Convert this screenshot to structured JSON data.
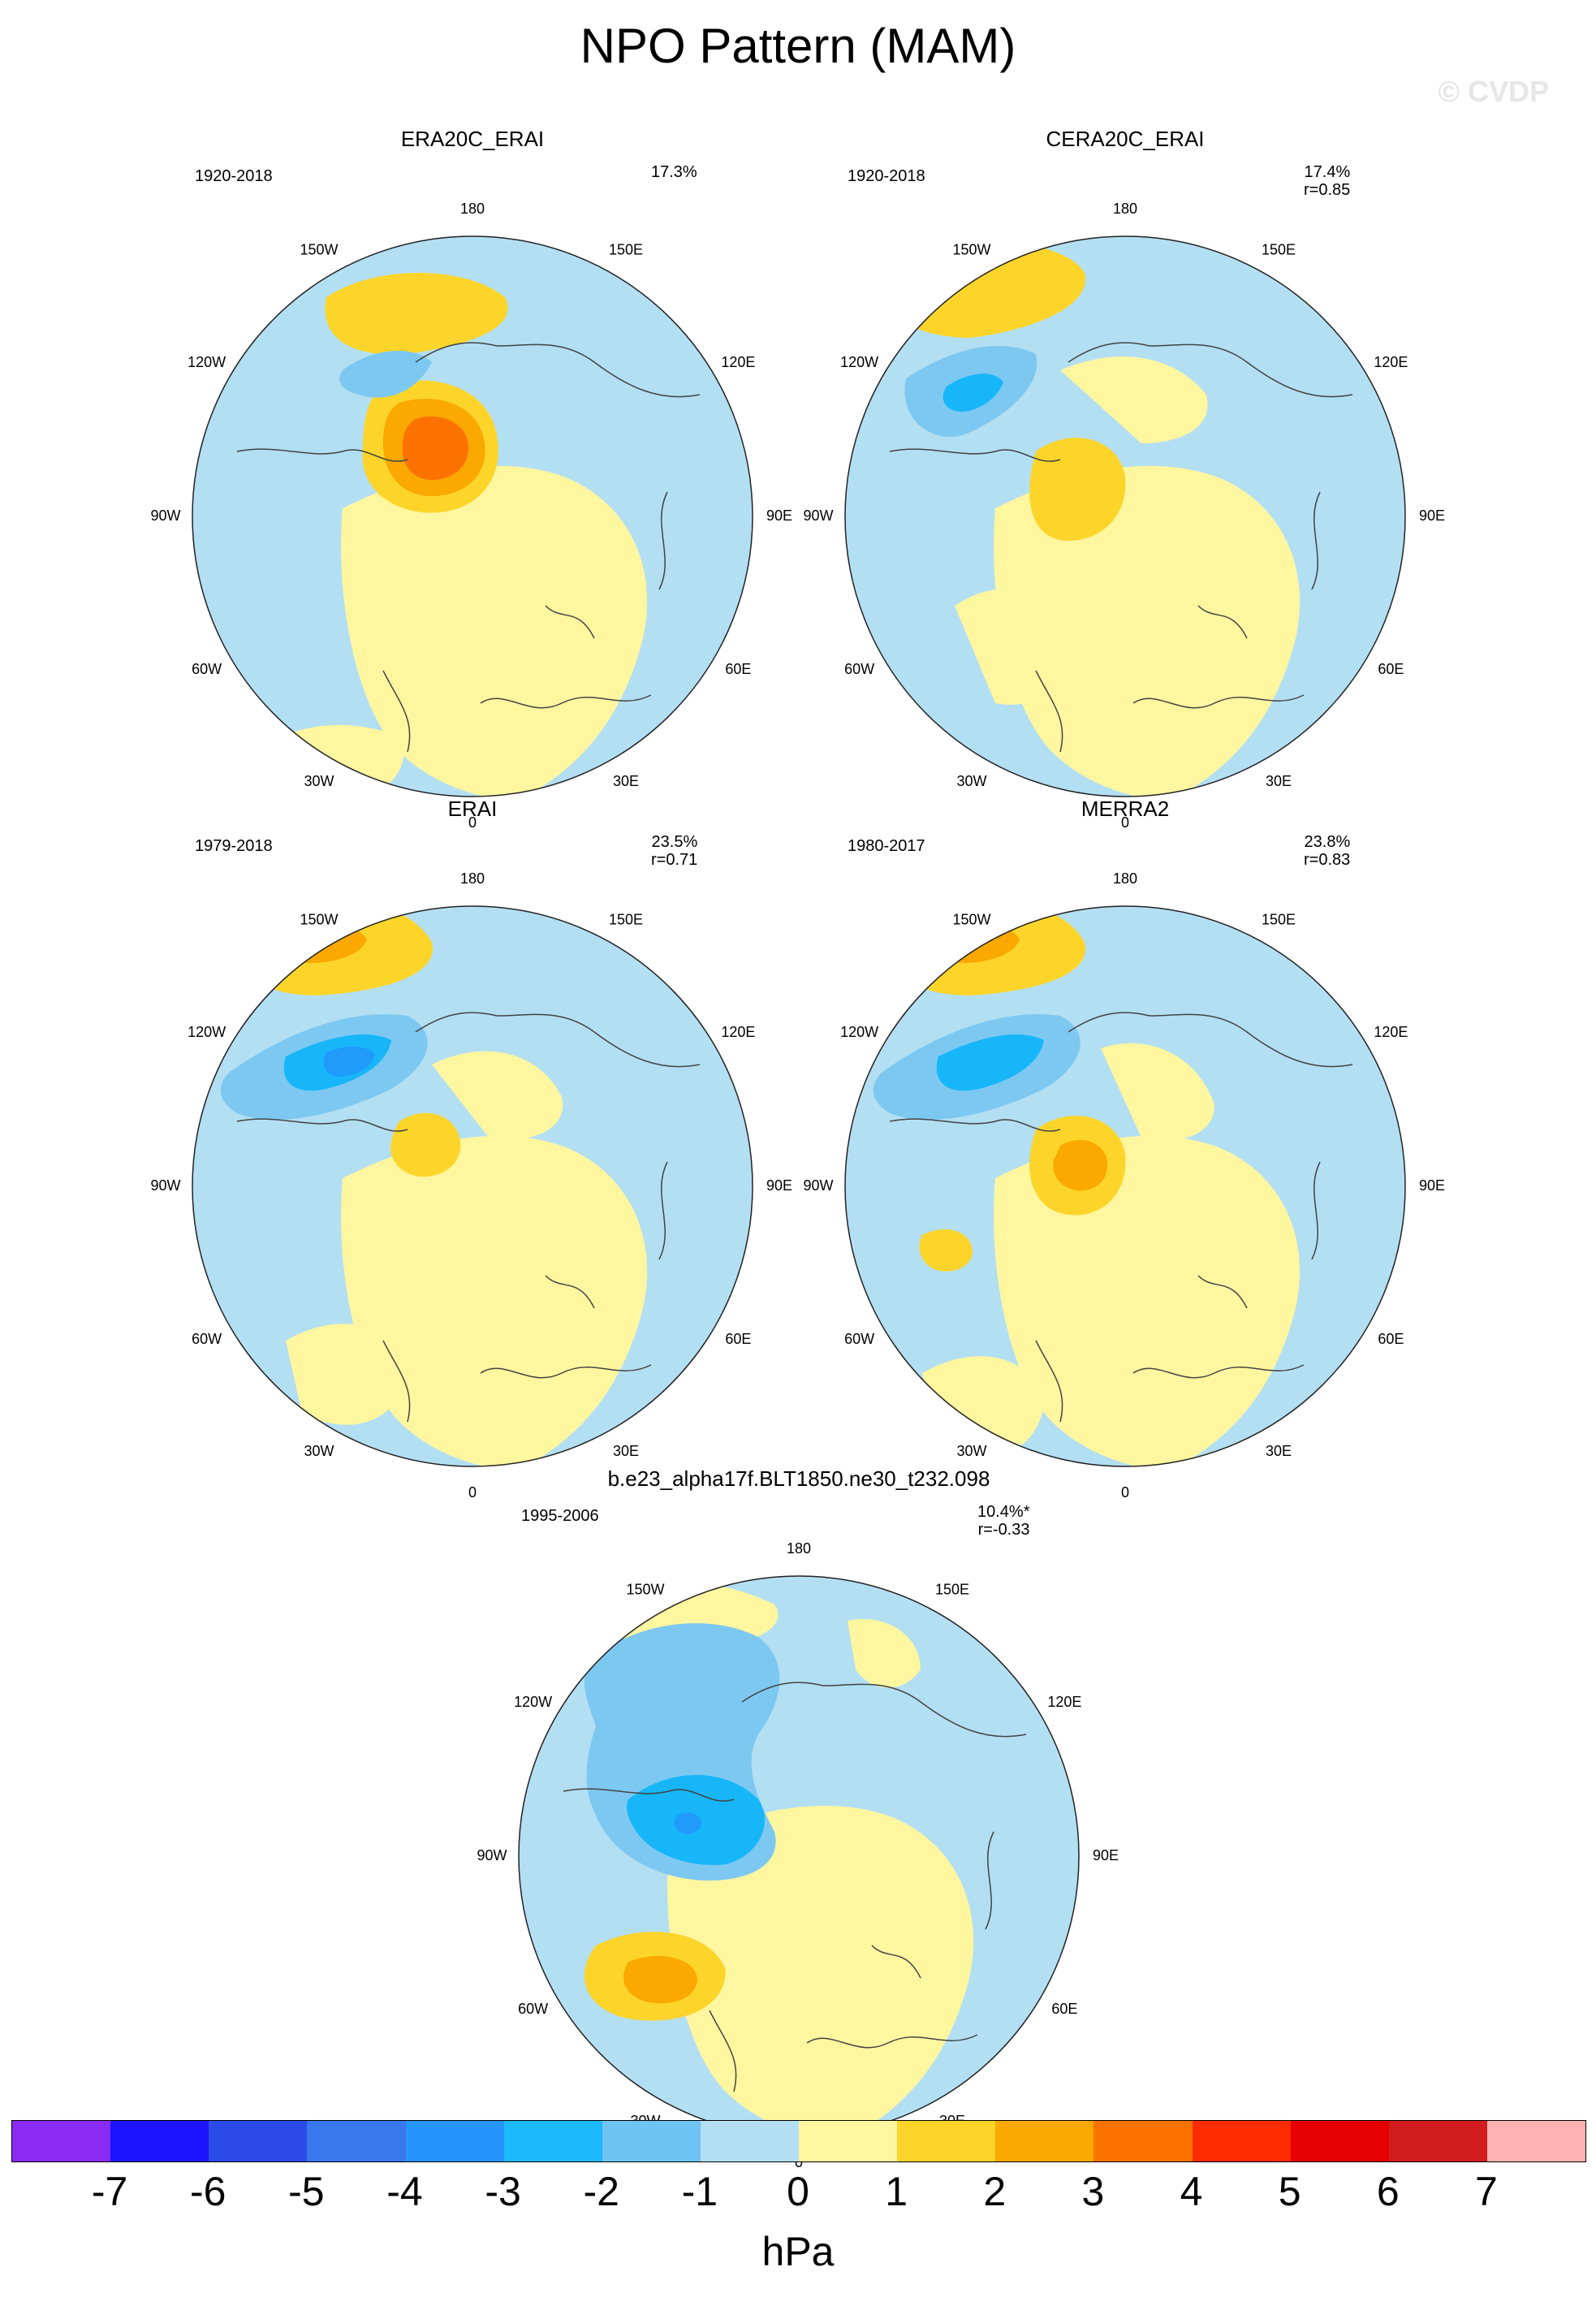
{
  "title": "NPO Pattern (MAM)",
  "watermark": "© CVDP",
  "lon_labels": [
    "180",
    "150E",
    "120E",
    "90E",
    "60E",
    "30E",
    "0",
    "30W",
    "60W",
    "90W",
    "120W",
    "150W"
  ],
  "colors": {
    "ocean": "#b3dff3",
    "land_pos": "#fff6a0",
    "pos1": "#fdd52a",
    "pos2": "#fba800",
    "pos3": "#fc7200",
    "neg1": "#7dc8f1",
    "neg2": "#17b6f9",
    "neg3": "#209bf9",
    "coast": "#444444"
  },
  "panels": [
    {
      "title": "ERA20C_ERAI",
      "years": "1920-2018",
      "pct": "17.3%",
      "r": ""
    },
    {
      "title": "CERA20C_ERAI",
      "years": "1920-2018",
      "pct": "17.4%",
      "r": "r=0.85"
    },
    {
      "title": "ERAI",
      "years": "1979-2018",
      "pct": "23.5%",
      "r": "r=0.71"
    },
    {
      "title": "MERRA2",
      "years": "1980-2017",
      "pct": "23.8%",
      "r": "r=0.83"
    },
    {
      "title": "b.e23_alpha17f.BLT1850.ne30_t232.098",
      "years": "1995-2006",
      "pct": "10.4%*",
      "r": "r=-0.33"
    }
  ],
  "colorbar": {
    "unit": "hPa",
    "ticks": [
      "-7",
      "-6",
      "-5",
      "-4",
      "-3",
      "-2",
      "-1",
      "0",
      "1",
      "2",
      "3",
      "4",
      "5",
      "6",
      "7"
    ],
    "colors": [
      "#8a2bf5",
      "#1d14ff",
      "#2a4be8",
      "#3778ee",
      "#2594fc",
      "#1bb8fb",
      "#6ec4f3",
      "#b3dff3",
      "#fff6a0",
      "#fdd52a",
      "#fba800",
      "#fc7200",
      "#ff2c00",
      "#e40000",
      "#d11d1d",
      "#ffb3b3"
    ]
  }
}
